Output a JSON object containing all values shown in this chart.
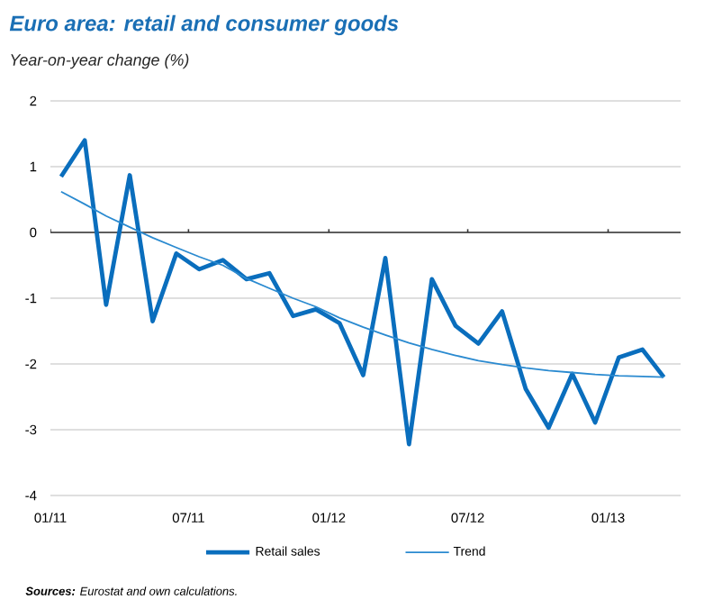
{
  "chart_data": {
    "type": "line",
    "title": "Euro area: retail and consumer goods",
    "subtitle": "Year-on-year change (%)",
    "x": [
      "2011-01-15",
      "2011-02-15",
      "2011-03-15",
      "2011-04-15",
      "2011-05-15",
      "2011-06-15",
      "2011-07-15",
      "2011-08-15",
      "2011-09-15",
      "2011-10-15",
      "2011-11-15",
      "2011-12-15",
      "2012-01-15",
      "2012-02-15",
      "2012-03-15",
      "2012-04-15",
      "2012-05-15",
      "2012-06-15",
      "2012-07-15",
      "2012-08-15",
      "2012-09-15",
      "2012-10-15",
      "2012-11-15",
      "2012-12-15",
      "2013-01-15",
      "2013-02-15",
      "2013-03-15"
    ],
    "series": [
      {
        "name": "Retail sales",
        "color": "#0a6ebd",
        "values": [
          0.85,
          1.4,
          -1.1,
          0.87,
          -1.35,
          -0.32,
          -0.56,
          -0.42,
          -0.71,
          -0.62,
          -1.27,
          -1.17,
          -1.38,
          -2.17,
          -0.39,
          -3.22,
          -0.71,
          -1.42,
          -1.69,
          -1.2,
          -2.38,
          -2.97,
          -2.15,
          -2.89,
          -1.9,
          -1.78,
          -2.2
        ]
      },
      {
        "name": "Trend",
        "color": "#2a8ad0",
        "values": [
          0.62,
          0.43,
          0.25,
          0.08,
          -0.08,
          -0.23,
          -0.37,
          -0.5,
          -0.7,
          -0.85,
          -1.0,
          -1.13,
          -1.3,
          -1.44,
          -1.56,
          -1.68,
          -1.78,
          -1.87,
          -1.95,
          -2.01,
          -2.06,
          -2.1,
          -2.13,
          -2.16,
          -2.18,
          -2.19,
          -2.2
        ]
      }
    ],
    "xlim": [
      "2011-01-01",
      "2013-04-06"
    ],
    "xticks": [
      {
        "value": "2011-01-01",
        "label": "01/11"
      },
      {
        "value": "2011-07-01",
        "label": "07/11"
      },
      {
        "value": "2012-01-01",
        "label": "01/12"
      },
      {
        "value": "2012-07-01",
        "label": "07/12"
      },
      {
        "value": "2013-01-01",
        "label": "01/13"
      }
    ],
    "ylim": [
      -4,
      2
    ],
    "yticks": [
      -4,
      -3,
      -2,
      -1,
      0,
      1,
      2
    ],
    "ref_lines": [
      {
        "axis": "y",
        "value": 0,
        "color": "#333333"
      }
    ],
    "grid": "y",
    "legend": "bottom",
    "annotations": [
      "**Sources:** Eurostat and own calculations."
    ]
  }
}
